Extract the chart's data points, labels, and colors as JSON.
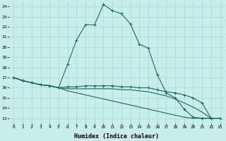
{
  "xlabel": "Humidex (Indice chaleur)",
  "xlim": [
    -0.5,
    23.5
  ],
  "ylim": [
    12.5,
    24.5
  ],
  "yticks": [
    13,
    14,
    15,
    16,
    17,
    18,
    19,
    20,
    21,
    22,
    23,
    24
  ],
  "xticks": [
    0,
    1,
    2,
    3,
    4,
    5,
    6,
    7,
    8,
    9,
    10,
    11,
    12,
    13,
    14,
    15,
    16,
    17,
    18,
    19,
    20,
    21,
    22,
    23
  ],
  "bg_color": "#c8eeea",
  "line_color": "#1a6b5e",
  "grid_color": "#a8d8d4",
  "lines": [
    {
      "x": [
        0,
        1,
        2,
        3,
        4,
        5,
        6,
        7,
        8,
        9,
        10,
        11,
        12,
        13,
        14,
        15,
        16,
        17,
        18,
        19,
        20,
        21,
        22
      ],
      "y": [
        17.0,
        16.7,
        16.5,
        16.3,
        16.2,
        16.0,
        18.3,
        20.7,
        22.2,
        22.2,
        24.2,
        23.6,
        23.3,
        22.3,
        20.3,
        19.9,
        17.3,
        15.5,
        15.0,
        13.9,
        13.1,
        13.0,
        13.0
      ],
      "has_markers": true
    },
    {
      "x": [
        0,
        1,
        2,
        3,
        4,
        5,
        6,
        7,
        8,
        9,
        10,
        11,
        12,
        13,
        14,
        15,
        16,
        17,
        18,
        19,
        20,
        21,
        22,
        23
      ],
      "y": [
        17.0,
        16.7,
        16.5,
        16.3,
        16.2,
        16.0,
        16.1,
        16.1,
        16.2,
        16.2,
        16.2,
        16.2,
        16.1,
        16.1,
        16.0,
        16.0,
        15.8,
        15.6,
        15.5,
        15.3,
        15.0,
        14.5,
        13.0,
        13.0
      ],
      "has_markers": true
    },
    {
      "x": [
        0,
        1,
        2,
        3,
        4,
        5,
        6,
        7,
        8,
        9,
        10,
        11,
        12,
        13,
        14,
        15,
        16,
        17,
        18,
        19,
        20,
        21,
        22,
        23
      ],
      "y": [
        17.0,
        16.7,
        16.5,
        16.3,
        16.2,
        16.0,
        15.9,
        15.9,
        15.9,
        15.9,
        15.9,
        15.9,
        15.8,
        15.8,
        15.7,
        15.6,
        15.4,
        15.2,
        14.9,
        14.5,
        14.1,
        13.6,
        13.0,
        13.0
      ],
      "has_markers": false
    },
    {
      "x": [
        0,
        1,
        2,
        3,
        4,
        5,
        6,
        7,
        8,
        9,
        10,
        11,
        12,
        13,
        14,
        15,
        16,
        17,
        18,
        19,
        20,
        21,
        22,
        23
      ],
      "y": [
        17.0,
        16.7,
        16.5,
        16.3,
        16.2,
        16.0,
        15.7,
        15.5,
        15.3,
        15.1,
        14.9,
        14.7,
        14.5,
        14.3,
        14.1,
        13.9,
        13.7,
        13.5,
        13.3,
        13.1,
        13.0,
        13.0,
        13.0,
        13.0
      ],
      "has_markers": false
    }
  ]
}
